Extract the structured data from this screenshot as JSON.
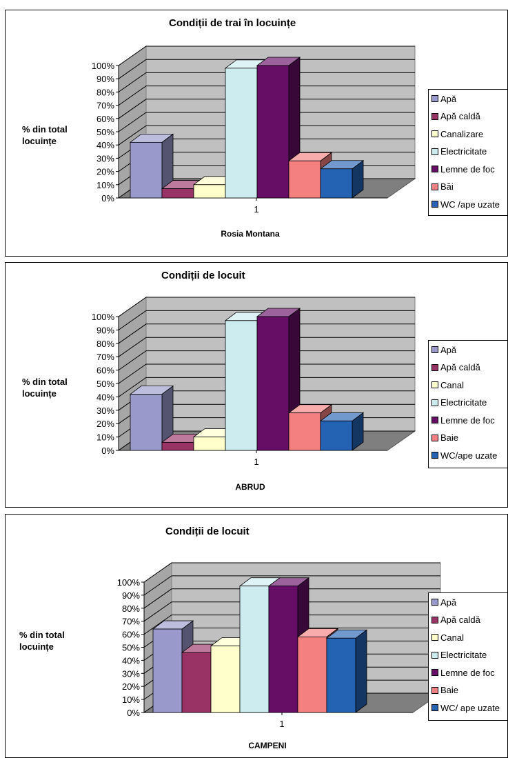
{
  "chart_data": [
    {
      "type": "bar",
      "title": "Condiții de trai în locuințe",
      "ylabel": "% din total\nlocuințe",
      "xlabel": "Rosia Montana",
      "categories": [
        "1"
      ],
      "ylim": [
        0,
        100
      ],
      "yticks": [
        "0%",
        "10%",
        "20%",
        "30%",
        "40%",
        "50%",
        "60%",
        "70%",
        "80%",
        "90%",
        "100%"
      ],
      "grid": true,
      "legend_position": "right",
      "series": [
        {
          "name": "Apă",
          "values": [
            42
          ],
          "color": "#9999cc"
        },
        {
          "name": "Apă caldă",
          "values": [
            7
          ],
          "color": "#993366"
        },
        {
          "name": "Canalizare",
          "values": [
            10
          ],
          "color": "#ffffcc"
        },
        {
          "name": "Electricitate",
          "values": [
            98
          ],
          "color": "#ccecf0"
        },
        {
          "name": "Lemne de foc",
          "values": [
            100
          ],
          "color": "#660e66"
        },
        {
          "name": "Băi",
          "values": [
            28
          ],
          "color": "#f48080"
        },
        {
          "name": "WC /ape uzate",
          "values": [
            22
          ],
          "color": "#2462b4"
        }
      ]
    },
    {
      "type": "bar",
      "title": "Condiții de locuit",
      "ylabel": "% din total\nlocuințe",
      "xlabel": "ABRUD",
      "categories": [
        "1"
      ],
      "ylim": [
        0,
        100
      ],
      "yticks": [
        "0%",
        "10%",
        "20%",
        "30%",
        "40%",
        "50%",
        "60%",
        "70%",
        "80%",
        "90%",
        "100%"
      ],
      "grid": true,
      "legend_position": "right",
      "series": [
        {
          "name": "Apă",
          "values": [
            42
          ],
          "color": "#9999cc"
        },
        {
          "name": "Apă caldă",
          "values": [
            6
          ],
          "color": "#993366"
        },
        {
          "name": "Canal",
          "values": [
            10
          ],
          "color": "#ffffcc"
        },
        {
          "name": "Electricitate",
          "values": [
            97
          ],
          "color": "#ccecf0"
        },
        {
          "name": "Lemne de foc",
          "values": [
            100
          ],
          "color": "#660e66"
        },
        {
          "name": "Baie",
          "values": [
            28
          ],
          "color": "#f48080"
        },
        {
          "name": "WC/ape uzate",
          "values": [
            22
          ],
          "color": "#2462b4"
        }
      ]
    },
    {
      "type": "bar",
      "title": "Condiții de locuit",
      "ylabel": "% din total\nlocuințe",
      "xlabel": "CAMPENI",
      "categories": [
        "1"
      ],
      "ylim": [
        0,
        100
      ],
      "yticks": [
        "0%",
        "10%",
        "20%",
        "30%",
        "40%",
        "50%",
        "60%",
        "70%",
        "80%",
        "90%",
        "100%"
      ],
      "grid": true,
      "legend_position": "right",
      "series": [
        {
          "name": "Apă",
          "values": [
            64
          ],
          "color": "#9999cc"
        },
        {
          "name": "Apă caldă",
          "values": [
            46
          ],
          "color": "#993366"
        },
        {
          "name": "Canal",
          "values": [
            51
          ],
          "color": "#ffffcc"
        },
        {
          "name": "Electricitate",
          "values": [
            97
          ],
          "color": "#ccecf0"
        },
        {
          "name": "Lemne de foc",
          "values": [
            97
          ],
          "color": "#660e66"
        },
        {
          "name": "Baie",
          "values": [
            58
          ],
          "color": "#f48080"
        },
        {
          "name": "WC/ ape uzate",
          "values": [
            57
          ],
          "color": "#2462b4"
        }
      ]
    }
  ]
}
